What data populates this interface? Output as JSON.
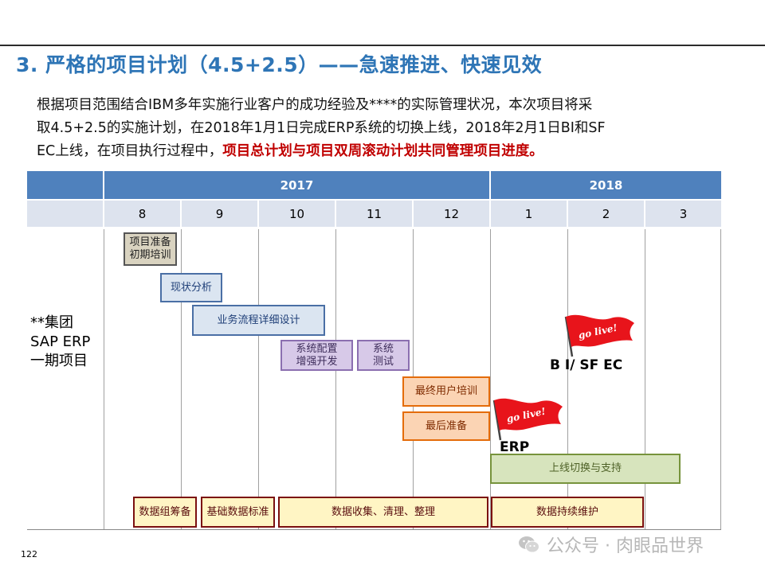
{
  "title": "3. 严格的项目计划（4.5+2.5）——急速推进、快速见效",
  "intro": {
    "line1": "根据项目范围结合IBM多年实施行业客户的成功经验及****的实际管理状况，本次项目将采",
    "line2": "取4.5+2.5的实施计划，在2018年1月1日完成ERP系统的切换上线，2018年2月1日BI和SF",
    "line3_plain": "EC上线，在项目执行过程中，",
    "line3_highlight": "项目总计划与项目双周滚动计划共同管理项目进度。"
  },
  "colors": {
    "title": "#2e75b6",
    "highlight": "#c00000",
    "year_header": "#4f81bd",
    "month_header": "#dde3ee"
  },
  "years": [
    "2017",
    "2018"
  ],
  "months": [
    "8",
    "9",
    "10",
    "11",
    "12",
    "1",
    "2",
    "3"
  ],
  "project_label": [
    "**集团",
    "SAP ERP",
    "一期项目"
  ],
  "tasks": {
    "prep": "项目准备\n初期培训",
    "analysis": "现状分析",
    "design": "业务流程详细设计",
    "config": "系统配置\n增强开发",
    "test": "系统\n测试",
    "user_training": "最终用户培训",
    "final_prep": "最后准备",
    "golive_support": "上线切换与支持"
  },
  "data_tasks": {
    "data_team": "数据组筹备",
    "data_standard": "基础数据标准",
    "data_collect": "数据收集、清理、整理",
    "data_maintain": "数据持续维护"
  },
  "milestones": {
    "flag_text": "go live!",
    "bi_label": "B I/ SF EC",
    "erp_label": "ERP",
    "flag_color": "#e8141b"
  },
  "page_number": "122",
  "watermark": "公众号 · 肉眼品世界"
}
